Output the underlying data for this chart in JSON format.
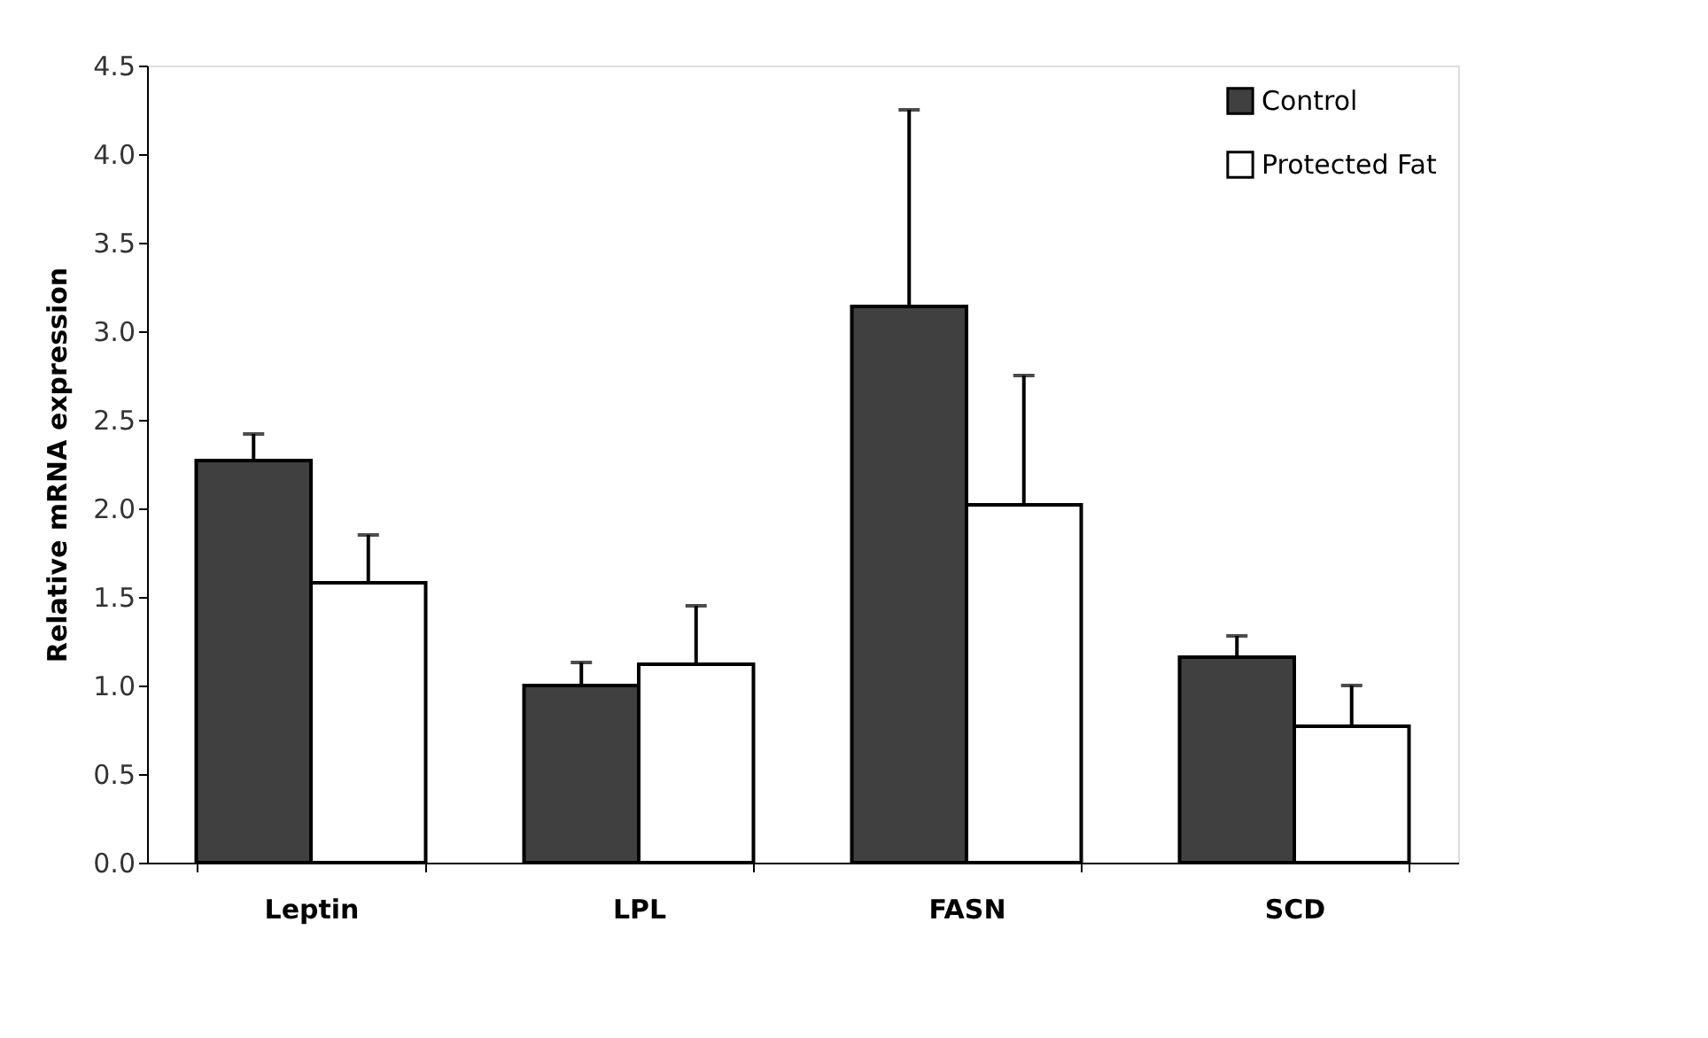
{
  "chart_data": {
    "type": "bar",
    "ylabel": "Relative mRNA expression",
    "categories": [
      "Leptin",
      "LPL",
      "FASN",
      "SCD"
    ],
    "series": [
      {
        "name": "Control",
        "color": "#404040",
        "values": [
          2.27,
          1.0,
          3.14,
          1.16
        ],
        "errors": [
          [
            2.27,
            2.42
          ],
          [
            1.0,
            1.13
          ],
          [
            3.14,
            4.25
          ],
          [
            1.16,
            1.28
          ]
        ]
      },
      {
        "name": "Protected Fat",
        "color": "#ffffff",
        "values": [
          1.58,
          1.12,
          2.02,
          0.77
        ],
        "errors": [
          [
            1.58,
            1.85
          ],
          [
            1.12,
            1.45
          ],
          [
            2.02,
            2.75
          ],
          [
            0.77,
            1.0
          ]
        ]
      }
    ],
    "ylim": [
      0,
      4.5
    ],
    "yticks": [
      {
        "value": 0,
        "label": "0.0"
      },
      0.5,
      {
        "value": 1,
        "label": "1.0"
      },
      1.5,
      {
        "value": 2,
        "label": "2.0"
      },
      2.5,
      {
        "value": 3,
        "label": "3.0"
      },
      3.5,
      {
        "value": 4,
        "label": "4.0"
      },
      4.5
    ],
    "grid": false,
    "legend": "top right"
  }
}
